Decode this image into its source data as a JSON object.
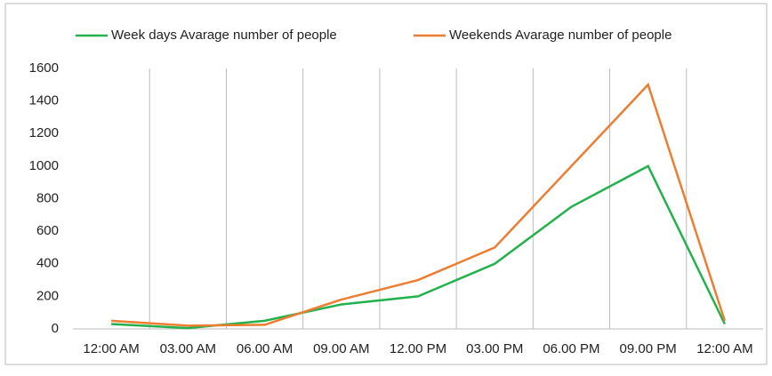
{
  "chart_data": {
    "type": "line",
    "categories": [
      "12:00 AM",
      "03.00 AM",
      "06.00 AM",
      "09.00 AM",
      "12.00 PM",
      "03.00 PM",
      "06.00 PM",
      "09.00 PM",
      "12:00 AM"
    ],
    "series": [
      {
        "name": "Week days Avarage number of people",
        "color": "#22b14c",
        "values": [
          30,
          5,
          50,
          150,
          200,
          400,
          750,
          1000,
          30
        ]
      },
      {
        "name": "Weekends Avarage number of people",
        "color": "#ed7d31",
        "values": [
          50,
          20,
          25,
          180,
          300,
          500,
          1000,
          1500,
          50
        ]
      }
    ],
    "ylim": [
      0,
      1600
    ],
    "yticks": [
      0,
      200,
      400,
      600,
      800,
      1000,
      1200,
      1400,
      1600
    ],
    "grid": "vertical",
    "legend": "top"
  }
}
